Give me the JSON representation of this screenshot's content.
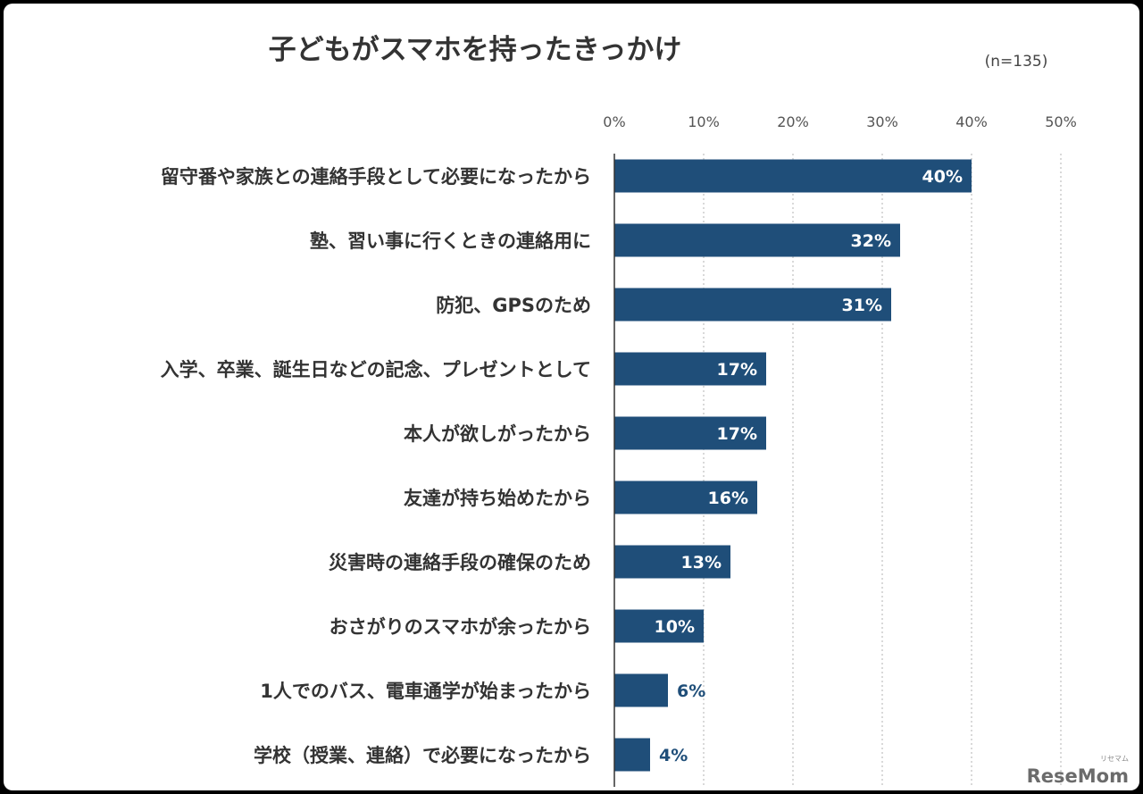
{
  "chart_data": {
    "type": "bar",
    "orientation": "horizontal",
    "title": "子どもがスマホを持ったきっかけ",
    "note": "(n=135)",
    "categories": [
      "留守番や家族との連絡手段として必要になったから",
      "塾、習い事に行くときの連絡用に",
      "防犯、GPSのため",
      "入学、卒業、誕生日などの記念、プレゼントとして",
      "本人が欲しがったから",
      "友達が持ち始めたから",
      "災害時の連絡手段の確保のため",
      "おさがりのスマホが余ったから",
      "1人でのバス、電車通学が始まったから",
      "学校（授業、連絡）で必要になったから"
    ],
    "values": [
      40,
      32,
      31,
      17,
      17,
      16,
      13,
      10,
      6,
      4
    ],
    "value_labels": [
      "40%",
      "32%",
      "31%",
      "17%",
      "17%",
      "16%",
      "13%",
      "10%",
      "6%",
      "4%"
    ],
    "xlim": [
      0,
      50
    ],
    "ticks": [
      0,
      10,
      20,
      30,
      40,
      50
    ],
    "tick_labels": [
      "0%",
      "10%",
      "20%",
      "30%",
      "40%",
      "50%"
    ],
    "grid": true,
    "bar_color": "#1f4e79"
  },
  "logo": {
    "text": "ReseMom",
    "kana": "リセマム"
  }
}
